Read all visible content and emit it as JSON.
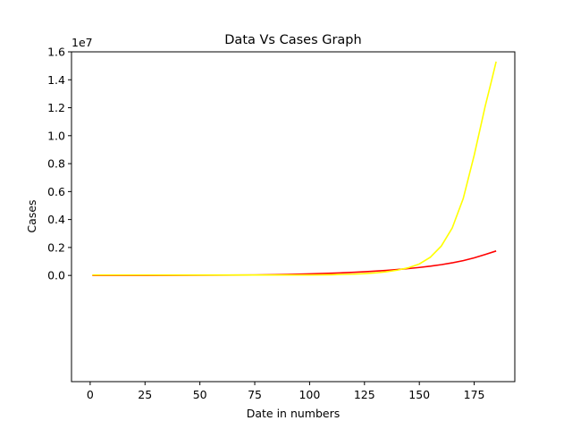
{
  "chart_data": {
    "type": "line",
    "title": "Data Vs Cases Graph",
    "xlabel": "Date in numbers",
    "ylabel": "Cases",
    "y_offset_label": "1e7",
    "xlim": [
      -8.5,
      193.5
    ],
    "ylim": [
      -0.76,
      1.6
    ],
    "y_unit_multiplier": 10000000,
    "xticks": [
      0,
      25,
      50,
      75,
      100,
      125,
      150,
      175
    ],
    "xtick_labels": [
      "0",
      "25",
      "50",
      "75",
      "100",
      "125",
      "150",
      "175"
    ],
    "yticks": [
      0.0,
      0.2,
      0.4,
      0.6,
      0.8,
      1.0,
      1.2,
      1.4,
      1.6
    ],
    "ytick_labels": [
      "0.0",
      "0.2",
      "0.4",
      "0.6",
      "0.8",
      "1.0",
      "1.2",
      "1.4",
      "1.6"
    ],
    "grid": false,
    "series": [
      {
        "color": "#ff0000",
        "x": [
          1,
          25,
          50,
          75,
          90,
          100,
          110,
          120,
          125,
          130,
          135,
          140,
          145,
          150,
          155,
          160,
          165,
          170,
          175,
          180,
          185
        ],
        "y": [
          0.0,
          0.0,
          0.001,
          0.003,
          0.007,
          0.011,
          0.016,
          0.022,
          0.026,
          0.031,
          0.036,
          0.042,
          0.049,
          0.057,
          0.066,
          0.077,
          0.09,
          0.106,
          0.126,
          0.15,
          0.175
        ]
      },
      {
        "color": "#ffff00",
        "x": [
          1,
          25,
          50,
          75,
          100,
          110,
          120,
          125,
          130,
          135,
          140,
          145,
          150,
          155,
          160,
          165,
          170,
          175,
          180,
          183,
          185
        ],
        "y": [
          0.003,
          0.003,
          0.003,
          0.003,
          0.003,
          0.005,
          0.009,
          0.013,
          0.018,
          0.026,
          0.038,
          0.055,
          0.082,
          0.13,
          0.21,
          0.34,
          0.55,
          0.86,
          1.21,
          1.4,
          1.53
        ]
      }
    ]
  }
}
